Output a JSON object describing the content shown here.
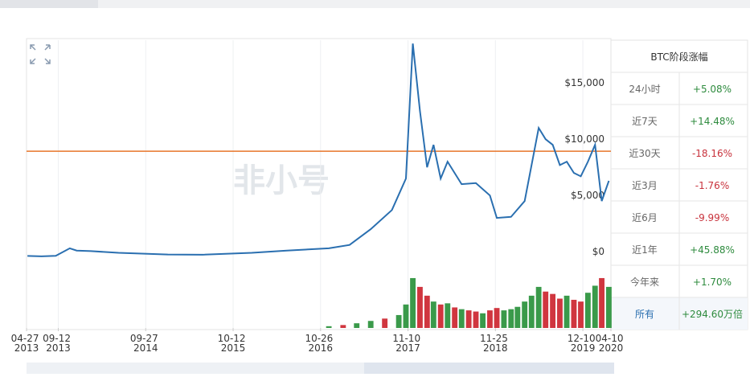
{
  "chart_data": {
    "type": "line",
    "watermark": "非小号",
    "xlim": [
      "2013-04-27",
      "2020-04-10"
    ],
    "xticks": [
      {
        "value": "2013-04-27",
        "label": "04-27 2013"
      },
      {
        "value": "2013-09-12",
        "label": "09-12 2013"
      },
      {
        "value": "2014-09-27",
        "label": "09-27 2014"
      },
      {
        "value": "2015-10-12",
        "label": "10-12 2015"
      },
      {
        "value": "2016-10-26",
        "label": "10-26 2016"
      },
      {
        "value": "2017-11-10",
        "label": "11-10 2017"
      },
      {
        "value": "2018-11-25",
        "label": "11-25 2018"
      },
      {
        "value": "2019-12-10",
        "label": "12-10 2019"
      },
      {
        "value": "2020-04-10",
        "label": "04-10 2020"
      }
    ],
    "ylim": [
      -350,
      19300
    ],
    "yticks": [
      {
        "value": 0,
        "label": "$0"
      },
      {
        "value": 5000,
        "label": "$5,000"
      },
      {
        "value": 10000,
        "label": "$10,000"
      },
      {
        "value": 15000,
        "label": "$15,000"
      }
    ],
    "grid": true,
    "reference_line": 9430,
    "reference_color": "#e8742a",
    "series": [
      {
        "color": "#2a6fb0",
        "x": [
          "2013-05",
          "2013-07",
          "2013-09",
          "2013-11",
          "2013-12",
          "2014-02",
          "2014-06",
          "2015-01",
          "2015-06",
          "2016-01",
          "2016-06",
          "2016-12",
          "2017-03",
          "2017-06",
          "2017-09",
          "2017-11",
          "2017-12",
          "2018-01",
          "2018-02",
          "2018-03",
          "2018-04",
          "2018-05",
          "2018-07",
          "2018-09",
          "2018-11",
          "2018-12",
          "2019-02",
          "2019-04",
          "2019-06",
          "2019-07",
          "2019-08",
          "2019-09",
          "2019-10",
          "2019-11",
          "2019-12",
          "2020-01",
          "2020-02",
          "2020-03",
          "2020-04"
        ],
        "values": [
          120,
          90,
          130,
          800,
          600,
          550,
          400,
          250,
          230,
          400,
          600,
          800,
          1100,
          2500,
          4200,
          7000,
          19000,
          13000,
          8000,
          10000,
          7000,
          8500,
          6500,
          6600,
          5500,
          3500,
          3600,
          5000,
          11500,
          10500,
          10000,
          8200,
          8500,
          7500,
          7200,
          8500,
          10000,
          5000,
          6800
        ]
      }
    ],
    "volume": {
      "vlim": [
        0,
        100
      ],
      "x": [
        "2016-12",
        "2017-02",
        "2017-04",
        "2017-06",
        "2017-08",
        "2017-10",
        "2017-11",
        "2017-12",
        "2018-01",
        "2018-02",
        "2018-03",
        "2018-04",
        "2018-05",
        "2018-06",
        "2018-07",
        "2018-08",
        "2018-09",
        "2018-10",
        "2018-11",
        "2018-12",
        "2019-01",
        "2019-02",
        "2019-03",
        "2019-04",
        "2019-05",
        "2019-06",
        "2019-07",
        "2019-08",
        "2019-09",
        "2019-10",
        "2019-11",
        "2019-12",
        "2020-01",
        "2020-02",
        "2020-03",
        "2020-04"
      ],
      "values": [
        3,
        5,
        8,
        12,
        16,
        22,
        40,
        85,
        70,
        55,
        45,
        40,
        42,
        35,
        32,
        30,
        28,
        25,
        30,
        34,
        30,
        32,
        36,
        45,
        55,
        70,
        62,
        58,
        50,
        55,
        48,
        45,
        60,
        72,
        85,
        70
      ],
      "colors": [
        "#3a9a4a",
        "#d0363f",
        "#3a9a4a",
        "#3a9a4a",
        "#d0363f",
        "#3a9a4a",
        "#3a9a4a",
        "#3a9a4a",
        "#d0363f",
        "#d0363f",
        "#3a9a4a",
        "#d0363f",
        "#3a9a4a",
        "#d0363f",
        "#3a9a4a",
        "#d0363f",
        "#d0363f",
        "#3a9a4a",
        "#d0363f",
        "#d0363f",
        "#3a9a4a",
        "#3a9a4a",
        "#3a9a4a",
        "#3a9a4a",
        "#3a9a4a",
        "#3a9a4a",
        "#d0363f",
        "#d0363f",
        "#d0363f",
        "#3a9a4a",
        "#d0363f",
        "#d0363f",
        "#3a9a4a",
        "#3a9a4a",
        "#d0363f",
        "#3a9a4a"
      ]
    }
  },
  "stats_table": {
    "title": "BTC阶段涨幅",
    "rows": [
      {
        "label": "24小时",
        "value": "+5.08%",
        "color": "#2e8b3e"
      },
      {
        "label": "近7天",
        "value": "+14.48%",
        "color": "#2e8b3e"
      },
      {
        "label": "近30天",
        "value": "-18.16%",
        "color": "#c8323c"
      },
      {
        "label": "近3月",
        "value": "-1.76%",
        "color": "#c8323c"
      },
      {
        "label": "近6月",
        "value": "-9.99%",
        "color": "#c8323c"
      },
      {
        "label": "近1年",
        "value": "+45.88%",
        "color": "#2e8b3e"
      },
      {
        "label": "今年来",
        "value": "+1.70%",
        "color": "#2e8b3e"
      },
      {
        "label": "所有",
        "value": "+294.60万倍",
        "color": "#2e8b3e",
        "label_color": "#2a6fb0"
      }
    ]
  }
}
